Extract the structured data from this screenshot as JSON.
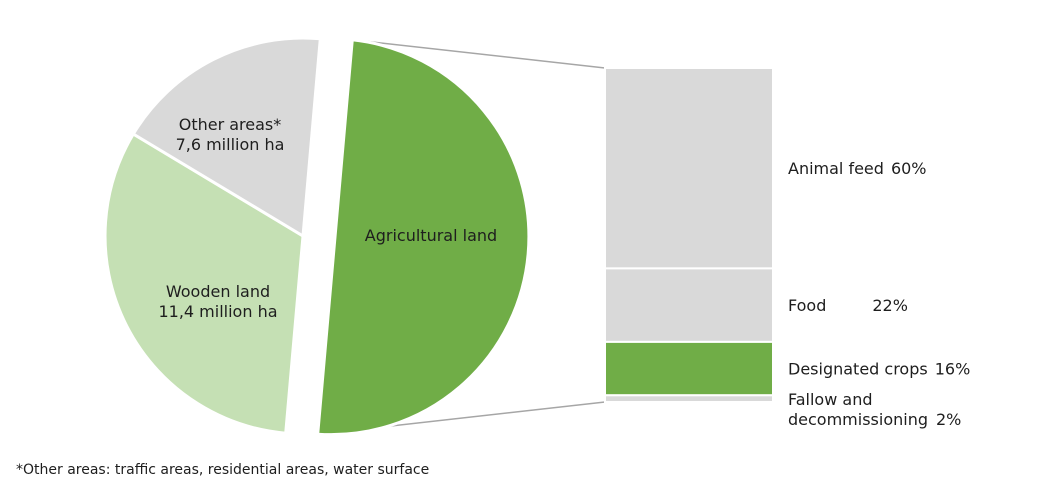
{
  "chart_data": {
    "type": "bar-of-pie",
    "pie": {
      "slices": [
        {
          "name": "Agricultural land",
          "label": "Agricultural land",
          "color": "#70ad47",
          "exploded": true
        },
        {
          "name": "Wooden land",
          "label": "Wooden land",
          "value_label": "11,4 million ha",
          "value": 11.4,
          "unit": "million ha",
          "color": "#c5e0b4"
        },
        {
          "name": "Other areas*",
          "label": "Other areas*",
          "value_label": "7,6 million ha",
          "value": 7.6,
          "unit": "million ha",
          "color": "#d9d9d9"
        }
      ]
    },
    "bar": {
      "segments": [
        {
          "name": "Animal feed",
          "label": "Animal feed",
          "percent_label": "60%",
          "value": 60,
          "color": "#d9d9d9"
        },
        {
          "name": "Food",
          "label": "Food",
          "percent_label": "22%",
          "value": 22,
          "color": "#d9d9d9"
        },
        {
          "name": "Designated crops",
          "label": "Designated crops",
          "percent_label": "16%",
          "value": 16,
          "color": "#70ad47"
        },
        {
          "name": "Fallow and decommissioning",
          "label_lines": [
            "Fallow and",
            "decommissioning"
          ],
          "percent_label": "2%",
          "value": 2,
          "color": "#d9d9d9"
        }
      ]
    }
  },
  "footnote": "*Other areas: traffic areas, residential areas, water surface"
}
